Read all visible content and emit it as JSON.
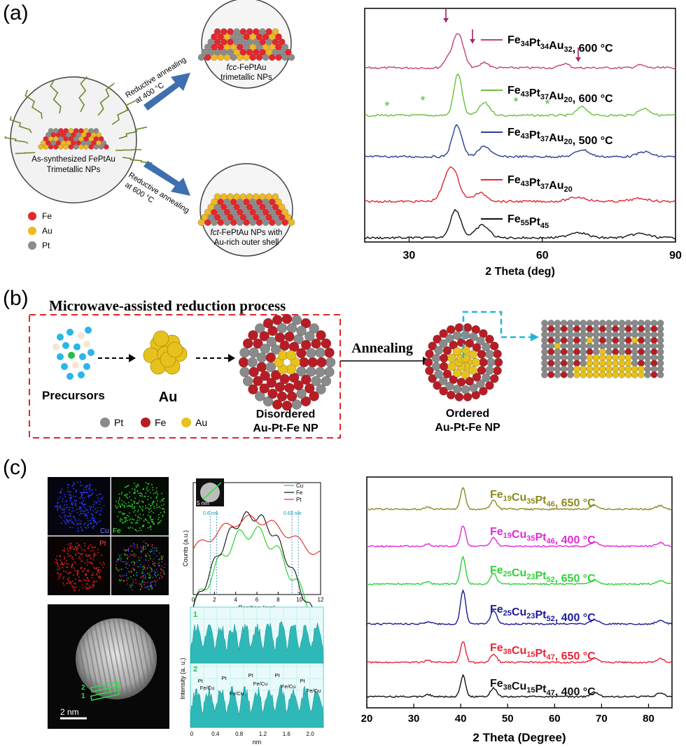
{
  "panel_a": {
    "label": "(a)",
    "schematic": {
      "start_label_1": "As-synthesized FePtAu",
      "start_label_2": "Trimetallic NPs",
      "arrow_top_1": "Reductive annealing",
      "arrow_top_2": "at 400 °C",
      "arrow_bottom_1": "Reductive annealing",
      "arrow_bottom_2": "at 600 °C",
      "top_np_1_prefix": "fcc",
      "top_np_1_suffix": "-FePtAu",
      "top_np_2": "trimetallic NPs",
      "bottom_np_1_prefix": "fct",
      "bottom_np_1_suffix": "-FePtAu NPs with",
      "bottom_np_2": "Au-rich outer shell",
      "legend": [
        {
          "label": "Fe",
          "color": "#e5262b"
        },
        {
          "label": "Au",
          "color": "#f0b823"
        },
        {
          "label": "Pt",
          "color": "#8c8c8c"
        }
      ]
    },
    "xrd": {
      "xlabel": "2 Theta (deg)",
      "xticks": [
        "30",
        "60",
        "90"
      ],
      "traces": [
        {
          "label": "Fe",
          "s1": "34",
          "e2": "Pt",
          "s2": "34",
          "e3": "Au",
          "s3": "32",
          "cond": ", 600 °C",
          "color": "#c1407a"
        },
        {
          "label": "Fe",
          "s1": "43",
          "e2": "Pt",
          "s2": "37",
          "e3": "Au",
          "s3": "20",
          "cond": ", 600 °C",
          "color": "#6abf3c"
        },
        {
          "label": "Fe",
          "s1": "43",
          "e2": "Pt",
          "s2": "37",
          "e3": "Au",
          "s3": "20",
          "cond": ", 500 °C",
          "color": "#2c3e8f"
        },
        {
          "label": "Fe",
          "s1": "43",
          "e2": "Pt",
          "s2": "37",
          "e3": "Au",
          "s3": "20",
          "cond": "",
          "color": "#e3262e"
        },
        {
          "label": "Fe",
          "s1": "55",
          "e2": "Pt",
          "s2": "45",
          "e3": "",
          "s3": "",
          "cond": "",
          "color": "#111111"
        }
      ]
    }
  },
  "panel_b": {
    "label": "(b)",
    "title": "Microwave-assisted reduction process",
    "precursors": "Precursors",
    "au": "Au",
    "disordered_1": "Disordered",
    "disordered_2": "Au-Pt-Fe NP",
    "annealing": "Annealing",
    "ordered_1": "Ordered",
    "ordered_2": "Au-Pt-Fe NP",
    "legend": [
      {
        "label": "Pt",
        "color": "#8a8a8a"
      },
      {
        "label": "Fe",
        "color": "#b81c24"
      },
      {
        "label": "Au",
        "color": "#e8c21c"
      }
    ]
  },
  "panel_c": {
    "label": "(c)",
    "eds": {
      "cu": "Cu",
      "fe": "Fe",
      "pt": "Pt"
    },
    "stem_scale": "2 nm",
    "stem_markers": [
      "2",
      "1"
    ],
    "linescan": {
      "inset_scale": "5 nm",
      "ylabel": "Counts (a.u.)",
      "xlabel": "Position (nm)",
      "xticks": [
        "0",
        "2",
        "4",
        "6",
        "8",
        "10",
        "12"
      ],
      "legend": [
        "Cu",
        "Fe",
        "Pt"
      ],
      "dim1": "0.6 nm",
      "dim2": "0.63 nm"
    },
    "intensity": {
      "ylabel": "Intensity (a. u.)",
      "xlabel": "nm",
      "xticks": [
        "0",
        "0.4",
        "0.8",
        "1.2",
        "1.6",
        "2.0"
      ],
      "markers": [
        "1",
        "2"
      ],
      "peaks": [
        "Pt",
        "Fe/Cu",
        "Pt",
        "Fe/Cu",
        "Pt",
        "Fe/Cu",
        "Pt",
        "Fe/Cu",
        "Pt",
        "Fe/Cu"
      ]
    },
    "xrd": {
      "xlabel": "2 Theta (Degree)",
      "xticks": [
        "20",
        "30",
        "40",
        "50",
        "60",
        "70",
        "80"
      ],
      "traces": [
        {
          "e1": "Fe",
          "s1": "19",
          "e2": "Cu",
          "s2": "35",
          "e3": "Pt",
          "s3": "46",
          "cond": ", 650 °C",
          "color": "#8c8a1f"
        },
        {
          "e1": "Fe",
          "s1": "19",
          "e2": "Cu",
          "s2": "35",
          "e3": "Pt",
          "s3": "46",
          "cond": ", 400 °C",
          "color": "#e02ad8"
        },
        {
          "e1": "Fe",
          "s1": "25",
          "e2": "Cu",
          "s2": "23",
          "e3": "Pt",
          "s3": "52",
          "cond": ", 650 °C",
          "color": "#2ed13a"
        },
        {
          "e1": "Fe",
          "s1": "25",
          "e2": "Cu",
          "s2": "23",
          "e3": "Pt",
          "s3": "52",
          "cond": ", 400 °C",
          "color": "#1b1b9a"
        },
        {
          "e1": "Fe",
          "s1": "38",
          "e2": "Cu",
          "s2": "15",
          "e3": "Pt",
          "s3": "47",
          "cond": ", 650 °C",
          "color": "#e82436"
        },
        {
          "e1": "Fe",
          "s1": "38",
          "e2": "Cu",
          "s2": "15",
          "e3": "Pt",
          "s3": "47",
          "cond": ", 400 °C",
          "color": "#111111"
        }
      ]
    }
  }
}
